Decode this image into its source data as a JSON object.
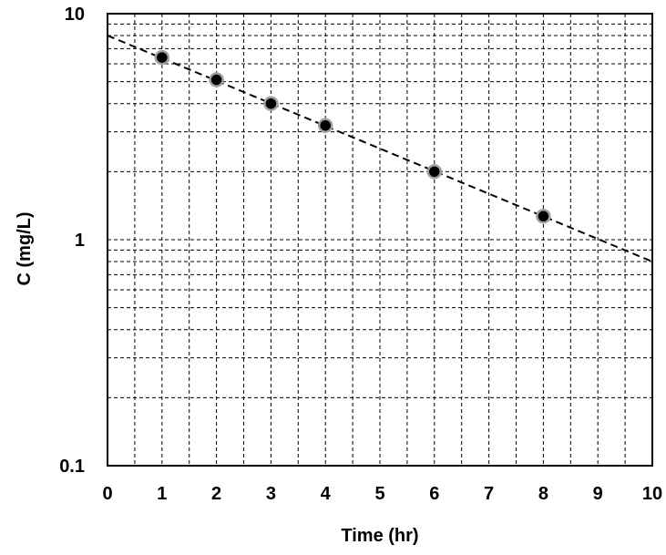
{
  "chart_data": {
    "type": "scatter",
    "title": "",
    "xlabel": "Time (hr)",
    "ylabel": "C (mg/L)",
    "xlim": [
      0,
      10
    ],
    "ylim": [
      0.1,
      10
    ],
    "y_scale": "log",
    "x_ticks": [
      0,
      1,
      2,
      3,
      4,
      5,
      6,
      7,
      8,
      9,
      10
    ],
    "x_tick_labels": [
      "0",
      "1",
      "2",
      "3",
      "4",
      "5",
      "6",
      "7",
      "8",
      "9",
      "10"
    ],
    "y_ticks": [
      0.1,
      1,
      10
    ],
    "y_tick_labels": [
      "0.1",
      "1",
      "10"
    ],
    "grid": true,
    "grid_style": "dashed",
    "series": [
      {
        "kind": "scatter",
        "x": [
          1,
          2,
          3,
          4,
          6,
          8
        ],
        "y": [
          6.4,
          5.1,
          4.0,
          3.2,
          2.0,
          1.27
        ],
        "color": "#000000"
      },
      {
        "kind": "line",
        "style": "dashed",
        "x": [
          0,
          10
        ],
        "y": [
          8.0,
          0.8
        ],
        "color": "#000000"
      }
    ]
  }
}
